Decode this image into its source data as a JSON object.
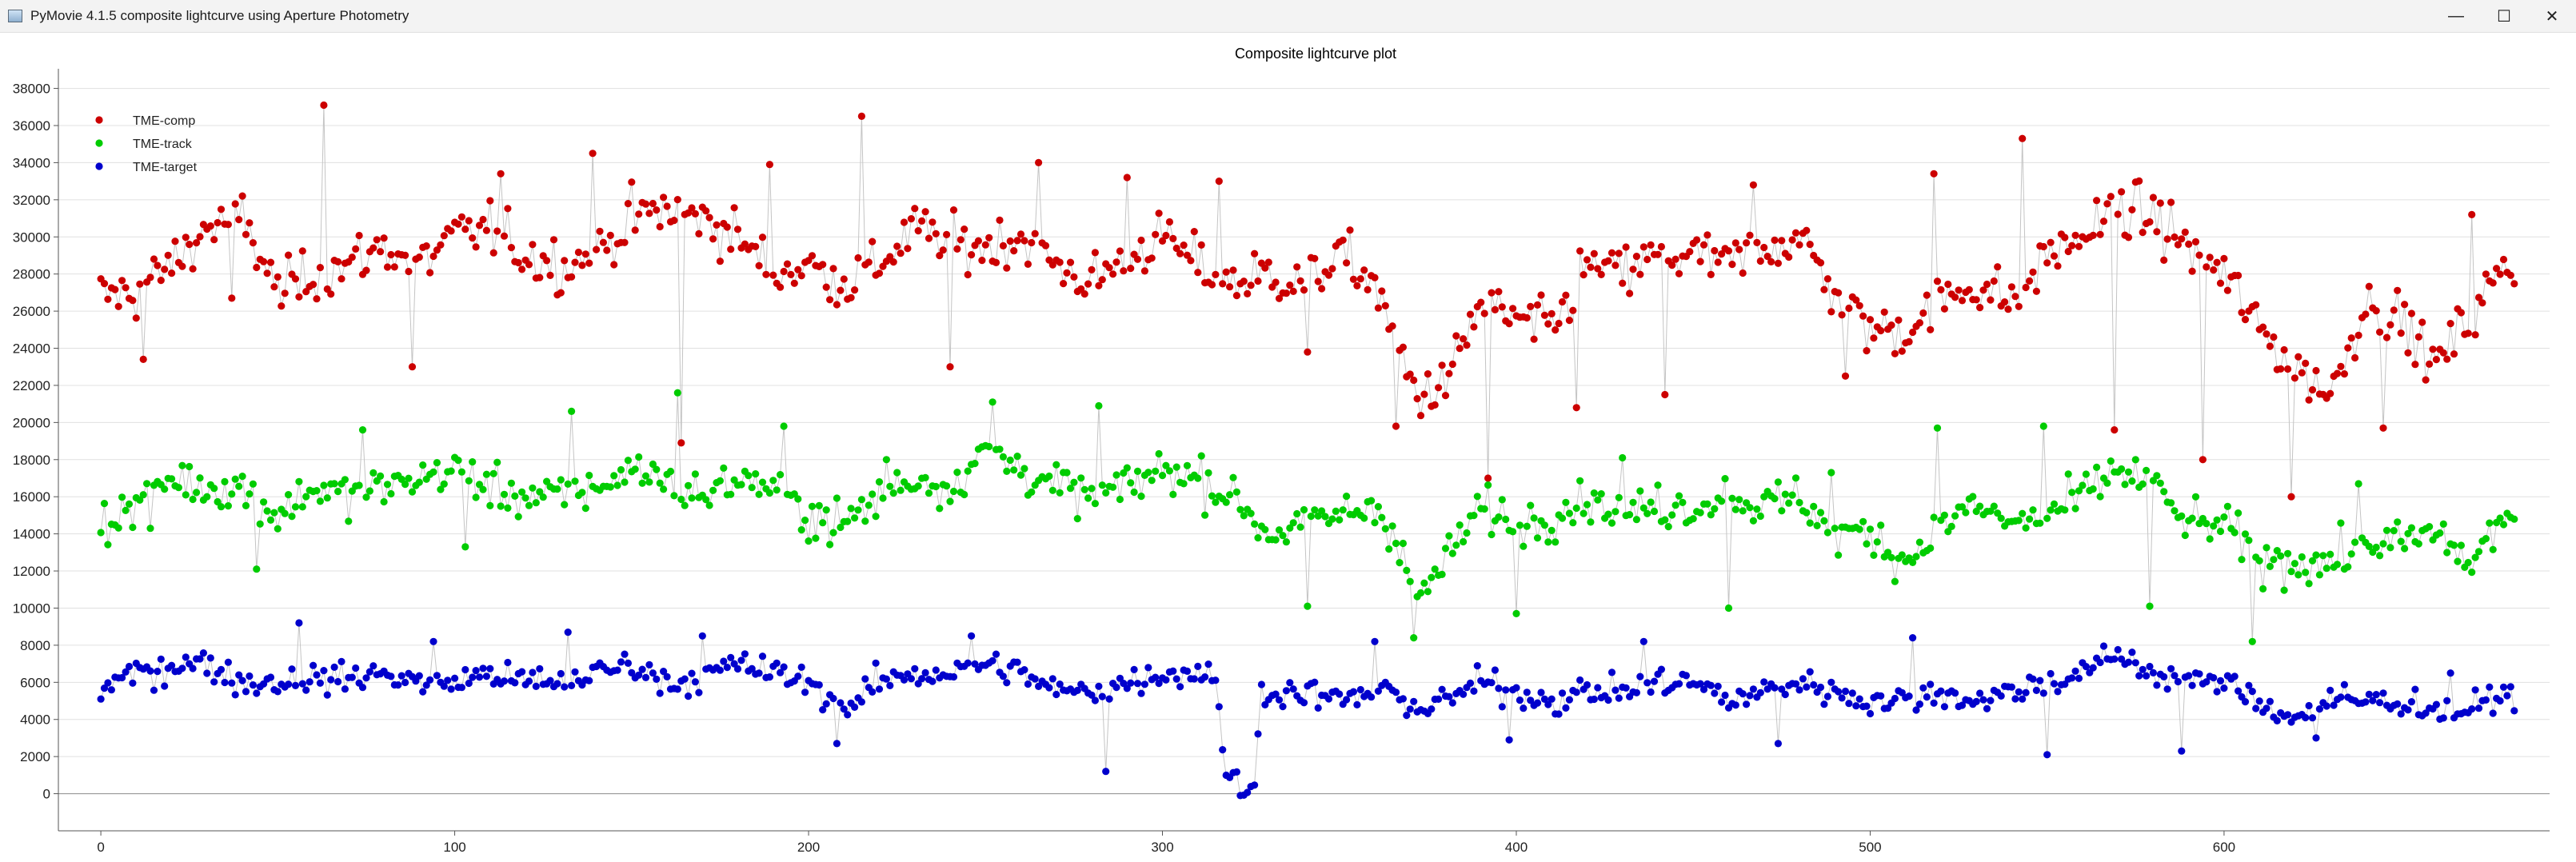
{
  "window": {
    "title": "PyMovie 4.1.5 composite lightcurve using Aperture Photometry",
    "minimize_glyph": "—",
    "maximize_glyph": "☐",
    "close_glyph": "✕"
  },
  "chart_data": {
    "type": "scatter",
    "title": "Composite lightcurve plot",
    "xlabel": "",
    "ylabel": "",
    "xlim": [
      -12,
      692
    ],
    "ylim": [
      -2000,
      38800
    ],
    "x_ticks": [
      0,
      100,
      200,
      300,
      400,
      500,
      600
    ],
    "y_ticks": [
      0,
      2000,
      4000,
      6000,
      8000,
      10000,
      12000,
      14000,
      16000,
      18000,
      20000,
      22000,
      24000,
      26000,
      28000,
      30000,
      32000,
      34000,
      36000,
      38000
    ],
    "grid": true,
    "connect_points": true,
    "legend_position": "top-left",
    "series": [
      {
        "name": "TME-comp",
        "color": "#cc0000",
        "anchors": [
          [
            0,
            26800
          ],
          [
            10,
            27000
          ],
          [
            20,
            28500
          ],
          [
            30,
            30500
          ],
          [
            40,
            31000
          ],
          [
            50,
            27000
          ],
          [
            60,
            28000
          ],
          [
            70,
            28500
          ],
          [
            80,
            29500
          ],
          [
            90,
            28500
          ],
          [
            100,
            30000
          ],
          [
            110,
            30500
          ],
          [
            120,
            29000
          ],
          [
            130,
            28500
          ],
          [
            140,
            29000
          ],
          [
            150,
            31000
          ],
          [
            160,
            31500
          ],
          [
            170,
            31000
          ],
          [
            180,
            30000
          ],
          [
            190,
            28000
          ],
          [
            200,
            28500
          ],
          [
            210,
            27500
          ],
          [
            220,
            28500
          ],
          [
            230,
            30500
          ],
          [
            240,
            29500
          ],
          [
            250,
            29500
          ],
          [
            260,
            30000
          ],
          [
            270,
            28500
          ],
          [
            280,
            27500
          ],
          [
            290,
            29000
          ],
          [
            300,
            30000
          ],
          [
            310,
            28500
          ],
          [
            320,
            27500
          ],
          [
            330,
            28000
          ],
          [
            340,
            27500
          ],
          [
            350,
            29000
          ],
          [
            360,
            27500
          ],
          [
            366,
            24000
          ],
          [
            372,
            21500
          ],
          [
            380,
            22000
          ],
          [
            390,
            26500
          ],
          [
            400,
            25500
          ],
          [
            410,
            25000
          ],
          [
            420,
            28500
          ],
          [
            430,
            28000
          ],
          [
            440,
            29000
          ],
          [
            450,
            29000
          ],
          [
            460,
            28500
          ],
          [
            470,
            29500
          ],
          [
            480,
            30000
          ],
          [
            490,
            27000
          ],
          [
            500,
            25000
          ],
          [
            510,
            25000
          ],
          [
            520,
            26500
          ],
          [
            530,
            27500
          ],
          [
            540,
            26500
          ],
          [
            550,
            29000
          ],
          [
            560,
            30000
          ],
          [
            570,
            31500
          ],
          [
            580,
            31000
          ],
          [
            590,
            29500
          ],
          [
            600,
            28000
          ],
          [
            610,
            25000
          ],
          [
            620,
            23000
          ],
          [
            630,
            21500
          ],
          [
            640,
            26500
          ],
          [
            650,
            25500
          ],
          [
            660,
            23000
          ],
          [
            670,
            26000
          ],
          [
            680,
            28500
          ]
        ],
        "spread": 2000,
        "sample_values": [
          23400,
          26700,
          37100,
          23000,
          33400,
          34500,
          18900,
          33900,
          36500,
          23000,
          34000,
          33200,
          33000,
          23800,
          19800,
          17000,
          20800,
          21500,
          32800,
          22500,
          33400,
          35300,
          19600,
          18000,
          16000,
          19700,
          31200
        ]
      },
      {
        "name": "TME-track",
        "color": "#00cc00",
        "anchors": [
          [
            0,
            14500
          ],
          [
            10,
            15500
          ],
          [
            20,
            17000
          ],
          [
            30,
            16500
          ],
          [
            40,
            16500
          ],
          [
            50,
            15000
          ],
          [
            60,
            16500
          ],
          [
            70,
            16000
          ],
          [
            80,
            16500
          ],
          [
            90,
            17000
          ],
          [
            100,
            17500
          ],
          [
            110,
            16500
          ],
          [
            120,
            16000
          ],
          [
            130,
            16000
          ],
          [
            140,
            16500
          ],
          [
            150,
            17500
          ],
          [
            160,
            17000
          ],
          [
            170,
            16000
          ],
          [
            180,
            17000
          ],
          [
            190,
            16500
          ],
          [
            200,
            15000
          ],
          [
            210,
            14500
          ],
          [
            220,
            16000
          ],
          [
            230,
            17000
          ],
          [
            240,
            16500
          ],
          [
            250,
            18500
          ],
          [
            260,
            17500
          ],
          [
            270,
            16500
          ],
          [
            280,
            16000
          ],
          [
            290,
            16500
          ],
          [
            300,
            17500
          ],
          [
            310,
            17000
          ],
          [
            320,
            16000
          ],
          [
            330,
            14000
          ],
          [
            340,
            14500
          ],
          [
            350,
            15000
          ],
          [
            360,
            15500
          ],
          [
            366,
            14000
          ],
          [
            372,
            10500
          ],
          [
            380,
            12500
          ],
          [
            390,
            15500
          ],
          [
            400,
            14500
          ],
          [
            410,
            15000
          ],
          [
            420,
            16000
          ],
          [
            430,
            15000
          ],
          [
            440,
            15500
          ],
          [
            450,
            15500
          ],
          [
            460,
            16000
          ],
          [
            470,
            15500
          ],
          [
            480,
            16000
          ],
          [
            490,
            14000
          ],
          [
            500,
            14000
          ],
          [
            510,
            12500
          ],
          [
            520,
            14500
          ],
          [
            530,
            15500
          ],
          [
            540,
            14500
          ],
          [
            550,
            15000
          ],
          [
            560,
            16000
          ],
          [
            570,
            17500
          ],
          [
            580,
            16500
          ],
          [
            590,
            14500
          ],
          [
            600,
            14500
          ],
          [
            610,
            12500
          ],
          [
            620,
            12500
          ],
          [
            630,
            12500
          ],
          [
            640,
            13500
          ],
          [
            650,
            13500
          ],
          [
            660,
            14000
          ],
          [
            670,
            12500
          ],
          [
            680,
            15000
          ]
        ],
        "spread": 1600,
        "sample_values": [
          14300,
          12100,
          19600,
          13300,
          20600,
          21600,
          19800,
          18000,
          21100,
          20900,
          18200,
          10100,
          8400,
          9700,
          18100,
          10000,
          17300,
          19700,
          19800,
          10100,
          8200,
          16700,
          12200
        ]
      },
      {
        "name": "TME-target",
        "color": "#0000cc",
        "anchors": [
          [
            0,
            5500
          ],
          [
            10,
            6500
          ],
          [
            20,
            7000
          ],
          [
            30,
            7000
          ],
          [
            40,
            6000
          ],
          [
            50,
            6000
          ],
          [
            60,
            6200
          ],
          [
            70,
            6200
          ],
          [
            80,
            6500
          ],
          [
            90,
            6000
          ],
          [
            100,
            6000
          ],
          [
            110,
            6500
          ],
          [
            120,
            6000
          ],
          [
            130,
            6000
          ],
          [
            140,
            6500
          ],
          [
            150,
            7000
          ],
          [
            160,
            6000
          ],
          [
            170,
            6200
          ],
          [
            180,
            7000
          ],
          [
            190,
            6500
          ],
          [
            200,
            6000
          ],
          [
            210,
            4500
          ],
          [
            220,
            6000
          ],
          [
            230,
            6500
          ],
          [
            240,
            6500
          ],
          [
            250,
            7000
          ],
          [
            260,
            6500
          ],
          [
            270,
            5500
          ],
          [
            280,
            5500
          ],
          [
            290,
            6000
          ],
          [
            300,
            6500
          ],
          [
            310,
            6500
          ],
          [
            315,
            6500
          ],
          [
            318,
            1000
          ],
          [
            322,
            600
          ],
          [
            326,
            200
          ],
          [
            328,
            5500
          ],
          [
            340,
            5500
          ],
          [
            350,
            5000
          ],
          [
            360,
            5500
          ],
          [
            366,
            5500
          ],
          [
            372,
            4500
          ],
          [
            380,
            5000
          ],
          [
            390,
            6000
          ],
          [
            400,
            5500
          ],
          [
            410,
            5000
          ],
          [
            420,
            5500
          ],
          [
            430,
            5500
          ],
          [
            440,
            6000
          ],
          [
            450,
            6000
          ],
          [
            460,
            5000
          ],
          [
            470,
            5500
          ],
          [
            480,
            6000
          ],
          [
            490,
            5500
          ],
          [
            500,
            5000
          ],
          [
            510,
            5000
          ],
          [
            520,
            5500
          ],
          [
            530,
            5000
          ],
          [
            540,
            5500
          ],
          [
            550,
            6000
          ],
          [
            560,
            6500
          ],
          [
            570,
            7500
          ],
          [
            580,
            6500
          ],
          [
            590,
            6000
          ],
          [
            600,
            6000
          ],
          [
            610,
            5000
          ],
          [
            620,
            4000
          ],
          [
            630,
            5000
          ],
          [
            640,
            5000
          ],
          [
            650,
            5000
          ],
          [
            660,
            4500
          ],
          [
            670,
            4500
          ],
          [
            680,
            5500
          ]
        ],
        "spread": 1100,
        "sample_values": [
          5800,
          9200,
          8200,
          8700,
          8500,
          2700,
          8500,
          1200,
          -100,
          8200,
          2900,
          8200,
          2700,
          8400,
          2100,
          2300,
          3000,
          6500
        ]
      }
    ],
    "point_count": 683
  }
}
